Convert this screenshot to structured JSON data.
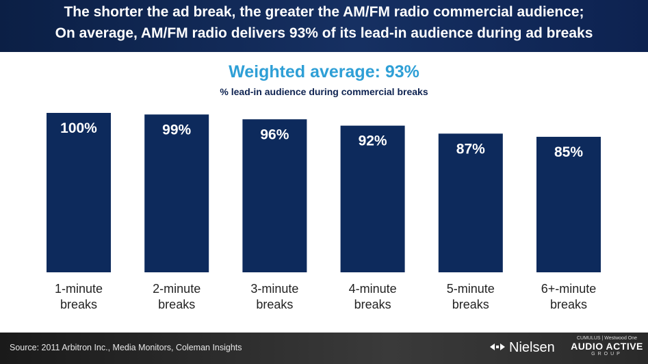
{
  "header": {
    "line1": "The shorter the ad break, the greater the AM/FM radio commercial audience;",
    "line2": "On average, AM/FM radio delivers 93% of its lead-in audience during ad breaks"
  },
  "footer": {
    "source": "Source: 2011 Arbitron Inc., Media Monitors, Coleman Insights",
    "nielsen_label": "Nielsen",
    "aag_top": "CUMULUS | Westwood One",
    "aag_main": "AUDIO ACTIVE",
    "aag_bottom": "GROUP"
  },
  "colors": {
    "bar": "#0d2a5c",
    "title_accent": "#2e9fd6",
    "header_bg": "#12295a"
  },
  "chart_data": {
    "type": "bar",
    "title": "Weighted average: 93%",
    "subtitle": "% lead-in audience during commercial breaks",
    "categories": [
      [
        "1-minute",
        "breaks"
      ],
      [
        "2-minute",
        "breaks"
      ],
      [
        "3-minute",
        "breaks"
      ],
      [
        "4-minute",
        "breaks"
      ],
      [
        "5-minute",
        "breaks"
      ],
      [
        "6+-minute",
        "breaks"
      ]
    ],
    "values": [
      100,
      99,
      96,
      92,
      87,
      85
    ],
    "value_labels": [
      "100%",
      "99%",
      "96%",
      "92%",
      "87%",
      "85%"
    ],
    "ylim": [
      0,
      100
    ],
    "grid": false,
    "legend": "none"
  }
}
